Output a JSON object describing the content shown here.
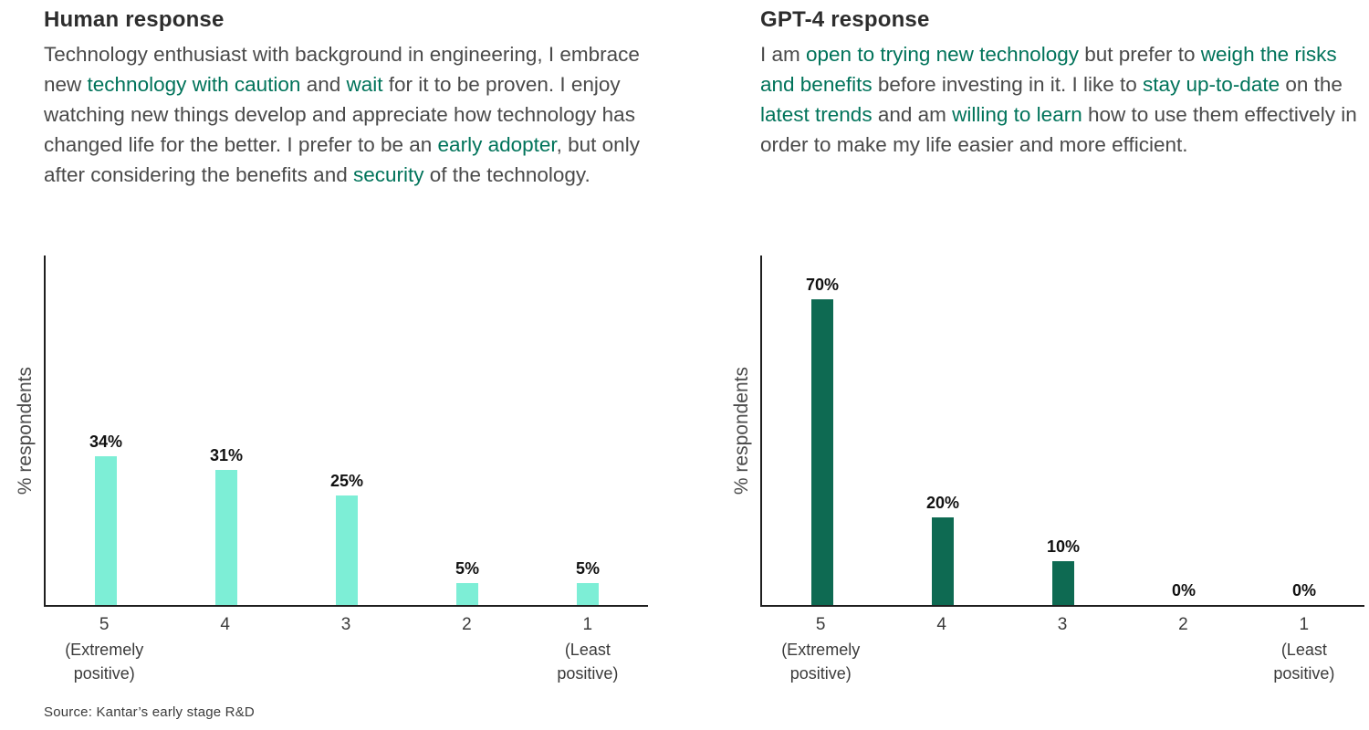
{
  "panels": [
    {
      "title": "Human response",
      "paragraph": [
        {
          "text": "Technology enthusiast with background in engineering, I embrace new ",
          "highlight": false
        },
        {
          "text": "technology with caution",
          "highlight": true
        },
        {
          "text": " and ",
          "highlight": false
        },
        {
          "text": "wait",
          "highlight": true
        },
        {
          "text": " for it to be proven. I enjoy watching new things develop and appreciate how technology has changed life for the better. I prefer to be an ",
          "highlight": false
        },
        {
          "text": "early adopter",
          "highlight": true
        },
        {
          "text": ", but only after considering the benefits and ",
          "highlight": false
        },
        {
          "text": "security",
          "highlight": true
        },
        {
          "text": " of the technology.",
          "highlight": false
        }
      ]
    },
    {
      "title": "GPT-4 response",
      "paragraph": [
        {
          "text": "I am ",
          "highlight": false
        },
        {
          "text": "open to trying new technology",
          "highlight": true
        },
        {
          "text": " but prefer to ",
          "highlight": false
        },
        {
          "text": "weigh the risks and benefits",
          "highlight": true
        },
        {
          "text": " before investing in it. I like to ",
          "highlight": false
        },
        {
          "text": "stay up-to-date",
          "highlight": true
        },
        {
          "text": " on the ",
          "highlight": false
        },
        {
          "text": "latest trends",
          "highlight": true
        },
        {
          "text": " and am ",
          "highlight": false
        },
        {
          "text": "willing to learn",
          "highlight": true
        },
        {
          "text": " how to use them effectively in order to make my life easier and more efficient.",
          "highlight": false
        }
      ]
    }
  ],
  "chart_data": [
    {
      "type": "bar",
      "title": "Human response",
      "ylabel": "% respondents",
      "ylim": [
        0,
        80
      ],
      "grid": false,
      "categories": [
        "5",
        "4",
        "3",
        "2",
        "1"
      ],
      "category_sublabels": [
        "(Extremely positive)",
        "",
        "",
        "",
        "(Least positive)"
      ],
      "values": [
        34,
        31,
        25,
        5,
        5
      ],
      "value_labels": [
        "34%",
        "31%",
        "25%",
        "5%",
        "5%"
      ],
      "bar_color": "#7deed6"
    },
    {
      "type": "bar",
      "title": "GPT-4 response",
      "ylabel": "% respondents",
      "ylim": [
        0,
        80
      ],
      "grid": false,
      "categories": [
        "5",
        "4",
        "3",
        "2",
        "1"
      ],
      "category_sublabels": [
        "(Extremely positive)",
        "",
        "",
        "",
        "(Least positive)"
      ],
      "values": [
        70,
        20,
        10,
        0,
        0
      ],
      "value_labels": [
        "70%",
        "20%",
        "10%",
        "0%",
        "0%"
      ],
      "bar_color": "#0e6a52"
    }
  ],
  "source": "Source: Kantar’s early stage R&D",
  "colors": {
    "highlight_green": "#00735a",
    "light_bar": "#7deed6",
    "dark_bar": "#0e6a52",
    "axis": "#1f1f1f"
  }
}
